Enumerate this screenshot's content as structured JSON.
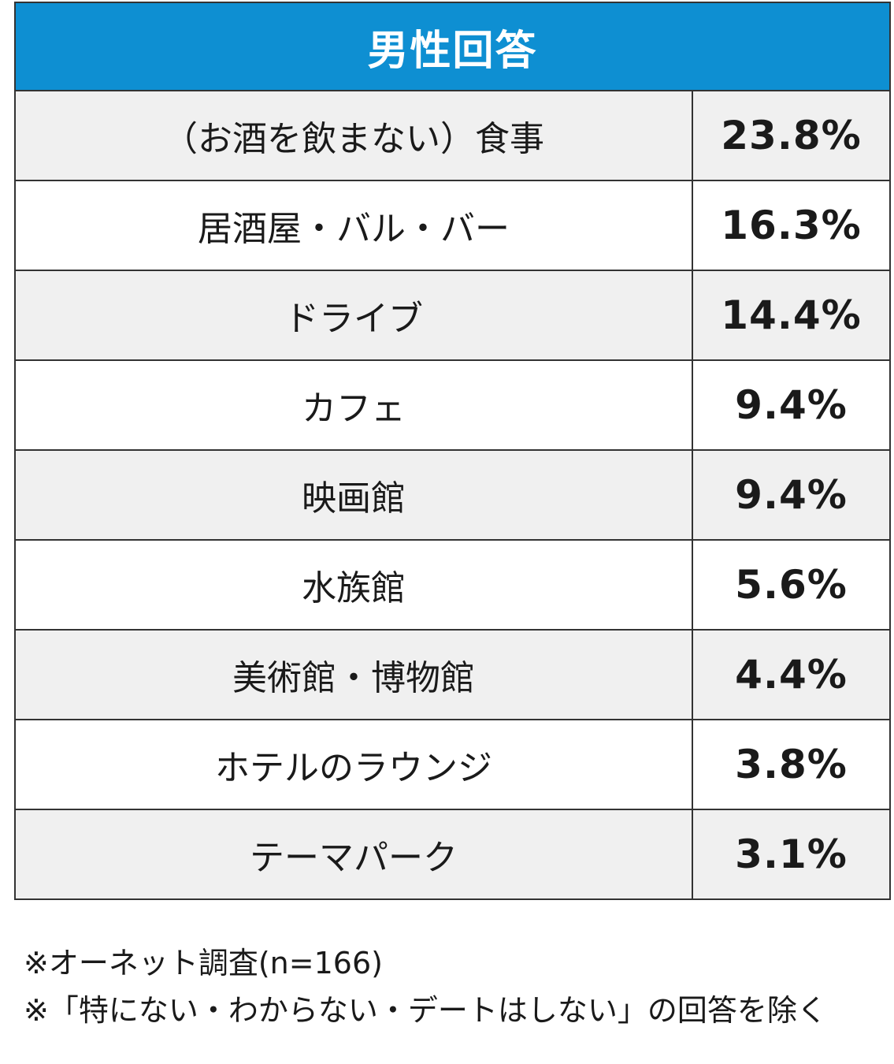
{
  "chart_data": {
    "type": "table",
    "title": "男性回答",
    "rows": [
      {
        "label": "（お酒を飲まない）食事",
        "value": "23.8%"
      },
      {
        "label": "居酒屋・バル・バー",
        "value": "16.3%"
      },
      {
        "label": "ドライブ",
        "value": "14.4%"
      },
      {
        "label": "カフェ",
        "value": "9.4%"
      },
      {
        "label": "映画館",
        "value": "9.4%"
      },
      {
        "label": "水族館",
        "value": "5.6%"
      },
      {
        "label": "美術館・博物館",
        "value": "4.4%"
      },
      {
        "label": "ホテルのラウンジ",
        "value": "3.8%"
      },
      {
        "label": "テーマパーク",
        "value": "3.1%"
      }
    ]
  },
  "notes": [
    "※オーネット調査(n=166)",
    "※「特にない・わからない・デートはしない」の回答を除く"
  ],
  "colors": {
    "header_bg": "#0e8fd2",
    "row_shade": "#f0f0f0"
  }
}
